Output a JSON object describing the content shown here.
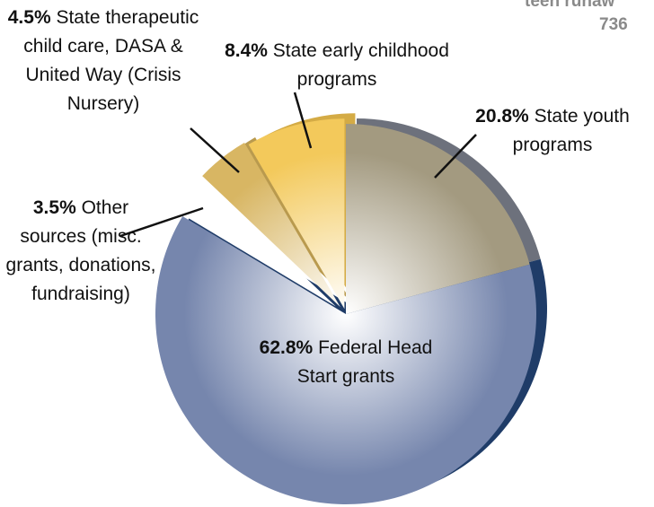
{
  "chart_data": {
    "type": "pie",
    "categories": [
      "State youth programs",
      "Federal Head Start grants",
      "Other sources (misc. grants, donations, fundraising)",
      "State therapeutic child care, DASA & United Way (Crisis Nursery)",
      "State early childhood programs"
    ],
    "values": [
      20.8,
      62.8,
      3.5,
      4.5,
      8.4
    ],
    "value_labels": [
      "20.8%",
      "62.8%",
      "3.5%",
      "4.5%",
      "8.4%"
    ],
    "colors": [
      "#a39a80",
      "#7686ad",
      "#ffffff",
      "#d8b663",
      "#f3c95b"
    ],
    "annotations": [
      "teen runaw",
      "736"
    ]
  }
}
